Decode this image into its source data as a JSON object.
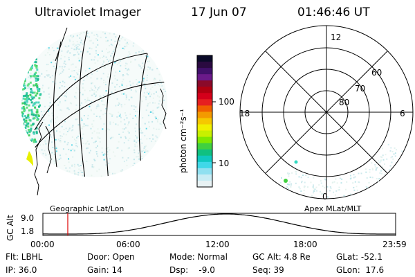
{
  "header": {
    "instrument": "Ultraviolet Imager",
    "date": "17 Jun 07",
    "time": "01:46:46 UT"
  },
  "colorbar": {
    "unit_label": "photon cm⁻²s⁻¹",
    "ticks": [
      "100",
      "10"
    ],
    "colors": [
      "#0a0a28",
      "#2a0a40",
      "#40106a",
      "#6a1a8a",
      "#8a0a2a",
      "#b00010",
      "#d4001a",
      "#e62020",
      "#f06000",
      "#f39a00",
      "#f5c800",
      "#f0f000",
      "#c8f000",
      "#80e800",
      "#40d040",
      "#10c080",
      "#10c8c0",
      "#40d8e8",
      "#90e0f0",
      "#c8ecf4",
      "#e8f2f4"
    ]
  },
  "polar": {
    "mlt_labels": [
      "12",
      "18",
      "6",
      "0"
    ],
    "lat_labels": [
      "60",
      "70",
      "80"
    ]
  },
  "coord_labels": {
    "left": "Geographic Lat/Lon",
    "right": "Apex MLat/MLT"
  },
  "altitude_plot": {
    "ylabel": "GC Alt",
    "yticks": [
      "9.0",
      "1.8"
    ],
    "xticks": [
      "00:00",
      "06:00",
      "12:00",
      "18:00",
      "23:59"
    ]
  },
  "status": {
    "row1": {
      "flt": "Flt: LBHL",
      "door": "Door: Open",
      "mode": "Mode: Normal",
      "gcalt": "GC Alt: 4.8 Re",
      "glat": "GLat: -52.1"
    },
    "row2": {
      "ip": "IP: 36.0",
      "gain": "Gain: 14",
      "dsp": "Dsp:    -9.0",
      "seq": "Seq: 39",
      "glon": "GLon:  17.6"
    }
  },
  "accent": {
    "marker": "#dd0000"
  }
}
